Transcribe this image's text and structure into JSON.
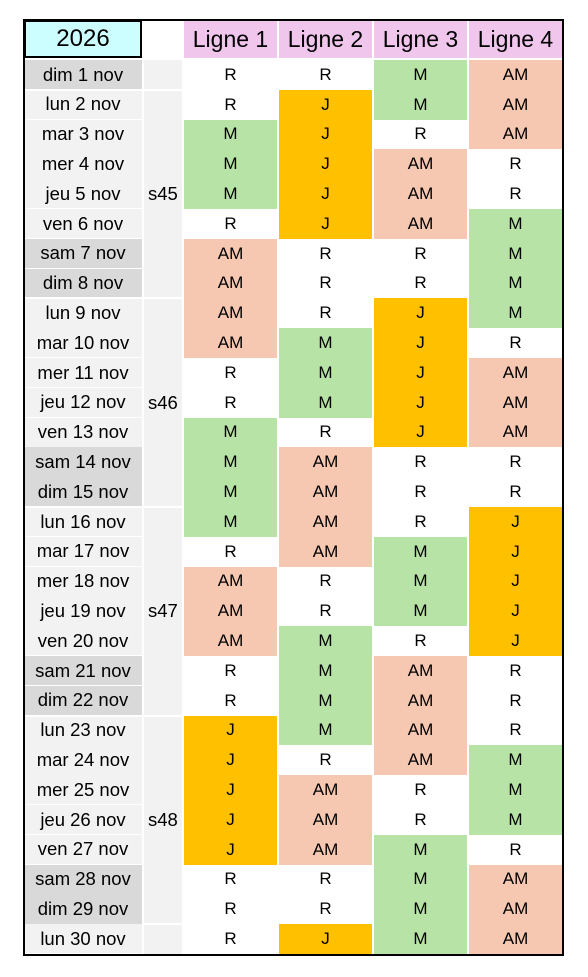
{
  "year": "2026",
  "lines": [
    "Ligne 1",
    "Ligne 2",
    "Ligne 3",
    "Ligne 4"
  ],
  "colors": {
    "header_year": "#ccfdff",
    "header_line": "#f0c6ec",
    "date_bg": "#f2f2f2",
    "weekend_bg": "#d9d9d9",
    "M": "#b8e3a6",
    "J": "#ffc000",
    "AM": "#f7c8b1",
    "R": "#ffffff"
  },
  "rows": [
    {
      "date": "dim 1 nov",
      "weekend": true,
      "v": [
        "R",
        "R",
        "M",
        "AM"
      ]
    },
    {
      "date": "lun 2 nov",
      "weekend": false,
      "v": [
        "R",
        "J",
        "M",
        "AM"
      ]
    },
    {
      "date": "mar 3 nov",
      "weekend": false,
      "v": [
        "M",
        "J",
        "R",
        "AM"
      ]
    },
    {
      "date": "mer 4 nov",
      "weekend": false,
      "v": [
        "M",
        "J",
        "AM",
        "R"
      ]
    },
    {
      "date": "jeu 5 nov",
      "weekend": false,
      "v": [
        "M",
        "J",
        "AM",
        "R"
      ]
    },
    {
      "date": "ven 6 nov",
      "weekend": false,
      "v": [
        "R",
        "J",
        "AM",
        "M"
      ]
    },
    {
      "date": "sam 7 nov",
      "weekend": true,
      "v": [
        "AM",
        "R",
        "R",
        "M"
      ]
    },
    {
      "date": "dim 8 nov",
      "weekend": true,
      "v": [
        "AM",
        "R",
        "R",
        "M"
      ]
    },
    {
      "date": "lun 9 nov",
      "weekend": false,
      "v": [
        "AM",
        "R",
        "J",
        "M"
      ]
    },
    {
      "date": "mar 10 nov",
      "weekend": false,
      "v": [
        "AM",
        "M",
        "J",
        "R"
      ]
    },
    {
      "date": "mer 11 nov",
      "weekend": false,
      "v": [
        "R",
        "M",
        "J",
        "AM"
      ]
    },
    {
      "date": "jeu 12 nov",
      "weekend": false,
      "v": [
        "R",
        "M",
        "J",
        "AM"
      ]
    },
    {
      "date": "ven 13 nov",
      "weekend": false,
      "v": [
        "M",
        "R",
        "J",
        "AM"
      ]
    },
    {
      "date": "sam 14 nov",
      "weekend": true,
      "v": [
        "M",
        "AM",
        "R",
        "R"
      ]
    },
    {
      "date": "dim 15 nov",
      "weekend": true,
      "v": [
        "M",
        "AM",
        "R",
        "R"
      ]
    },
    {
      "date": "lun 16 nov",
      "weekend": false,
      "v": [
        "M",
        "AM",
        "R",
        "J"
      ]
    },
    {
      "date": "mar 17 nov",
      "weekend": false,
      "v": [
        "R",
        "AM",
        "M",
        "J"
      ]
    },
    {
      "date": "mer 18 nov",
      "weekend": false,
      "v": [
        "AM",
        "R",
        "M",
        "J"
      ]
    },
    {
      "date": "jeu 19 nov",
      "weekend": false,
      "v": [
        "AM",
        "R",
        "M",
        "J"
      ]
    },
    {
      "date": "ven 20 nov",
      "weekend": false,
      "v": [
        "AM",
        "M",
        "R",
        "J"
      ]
    },
    {
      "date": "sam 21 nov",
      "weekend": true,
      "v": [
        "R",
        "M",
        "AM",
        "R"
      ]
    },
    {
      "date": "dim 22 nov",
      "weekend": true,
      "v": [
        "R",
        "M",
        "AM",
        "R"
      ]
    },
    {
      "date": "lun 23 nov",
      "weekend": false,
      "v": [
        "J",
        "M",
        "AM",
        "R"
      ]
    },
    {
      "date": "mar 24 nov",
      "weekend": false,
      "v": [
        "J",
        "R",
        "AM",
        "M"
      ]
    },
    {
      "date": "mer 25 nov",
      "weekend": false,
      "v": [
        "J",
        "AM",
        "R",
        "M"
      ]
    },
    {
      "date": "jeu 26 nov",
      "weekend": false,
      "v": [
        "J",
        "AM",
        "R",
        "M"
      ]
    },
    {
      "date": "ven 27 nov",
      "weekend": false,
      "v": [
        "J",
        "AM",
        "M",
        "R"
      ]
    },
    {
      "date": "sam 28 nov",
      "weekend": true,
      "v": [
        "R",
        "R",
        "M",
        "AM"
      ]
    },
    {
      "date": "dim 29 nov",
      "weekend": true,
      "v": [
        "R",
        "R",
        "M",
        "AM"
      ]
    },
    {
      "date": "lun 30 nov",
      "weekend": false,
      "v": [
        "R",
        "J",
        "M",
        "AM"
      ]
    }
  ],
  "weeks": [
    {
      "label": "s45",
      "first": 1,
      "last": 7
    },
    {
      "label": "s46",
      "first": 8,
      "last": 14
    },
    {
      "label": "s47",
      "first": 15,
      "last": 21
    },
    {
      "label": "s48",
      "first": 22,
      "last": 28
    }
  ]
}
